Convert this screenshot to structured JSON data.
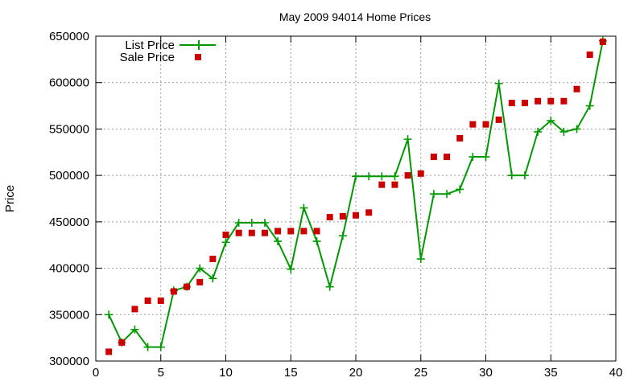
{
  "chart_data": {
    "type": "line",
    "title": "May 2009 94014 Home Prices",
    "xlabel": "",
    "ylabel": "Price",
    "xlim": [
      0,
      40
    ],
    "ylim": [
      300000,
      650000
    ],
    "x_ticks": [
      0,
      5,
      10,
      15,
      20,
      25,
      30,
      35,
      40
    ],
    "y_ticks": [
      300000,
      350000,
      400000,
      450000,
      500000,
      550000,
      600000,
      650000
    ],
    "grid": true,
    "legend_position": "top-left",
    "series": [
      {
        "name": "List Price",
        "style": "line with plus markers",
        "color": "#009900",
        "x": [
          1,
          2,
          3,
          4,
          5,
          6,
          7,
          8,
          9,
          10,
          11,
          12,
          13,
          14,
          15,
          16,
          17,
          18,
          19,
          20,
          21,
          22,
          23,
          24,
          25,
          26,
          27,
          28,
          29,
          30,
          31,
          32,
          33,
          34,
          35,
          36,
          37,
          38,
          39
        ],
        "y": [
          350000,
          320000,
          334000,
          315000,
          315000,
          376000,
          380000,
          400000,
          389000,
          428000,
          449000,
          449000,
          449000,
          429000,
          399000,
          465000,
          429000,
          380000,
          435000,
          499000,
          499000,
          499000,
          499000,
          539000,
          410000,
          480000,
          480000,
          485000,
          520000,
          520000,
          599000,
          500000,
          500000,
          547000,
          559000,
          547000,
          550000,
          575000,
          645000
        ]
      },
      {
        "name": "Sale Price",
        "style": "square markers",
        "color": "#cc0000",
        "x": [
          1,
          2,
          3,
          4,
          5,
          6,
          7,
          8,
          9,
          10,
          11,
          12,
          13,
          14,
          15,
          16,
          17,
          18,
          19,
          20,
          21,
          22,
          23,
          24,
          25,
          26,
          27,
          28,
          29,
          30,
          31,
          32,
          33,
          34,
          35,
          36,
          37,
          38,
          39
        ],
        "y": [
          310000,
          320000,
          356000,
          365000,
          365000,
          375000,
          380000,
          385000,
          410000,
          436000,
          438000,
          438000,
          438000,
          440000,
          440000,
          440000,
          440000,
          455000,
          456000,
          457000,
          460000,
          490000,
          490000,
          500000,
          502000,
          520000,
          520000,
          540000,
          555000,
          555000,
          560000,
          578000,
          578000,
          580000,
          580000,
          580000,
          593000,
          630000,
          644000
        ]
      }
    ]
  }
}
